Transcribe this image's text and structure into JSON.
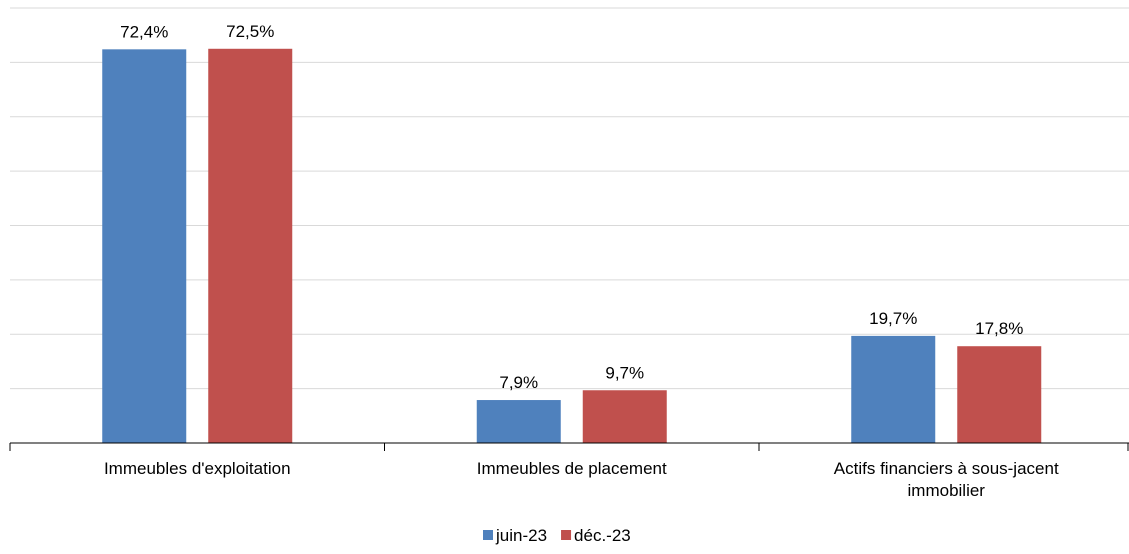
{
  "chart_data": {
    "type": "bar",
    "categories": [
      [
        "Immeubles d'exploitation"
      ],
      [
        "Immeubles de placement"
      ],
      [
        "Actifs financiers à sous-jacent",
        "immobilier"
      ]
    ],
    "series": [
      {
        "name": "juin-23",
        "color": "#4f81bd",
        "values": [
          72.4,
          7.9,
          19.7
        ],
        "labels": [
          "72,4%",
          "7,9%",
          "19,7%"
        ]
      },
      {
        "name": "déc.-23",
        "color": "#c0504d",
        "values": [
          72.5,
          9.7,
          17.8
        ],
        "labels": [
          "72,5%",
          "9,7%",
          "17,8%"
        ]
      }
    ],
    "ylim": [
      0,
      80
    ],
    "grid": true,
    "legend_position": "bottom-center",
    "title": "",
    "xlabel": "",
    "ylabel": ""
  }
}
